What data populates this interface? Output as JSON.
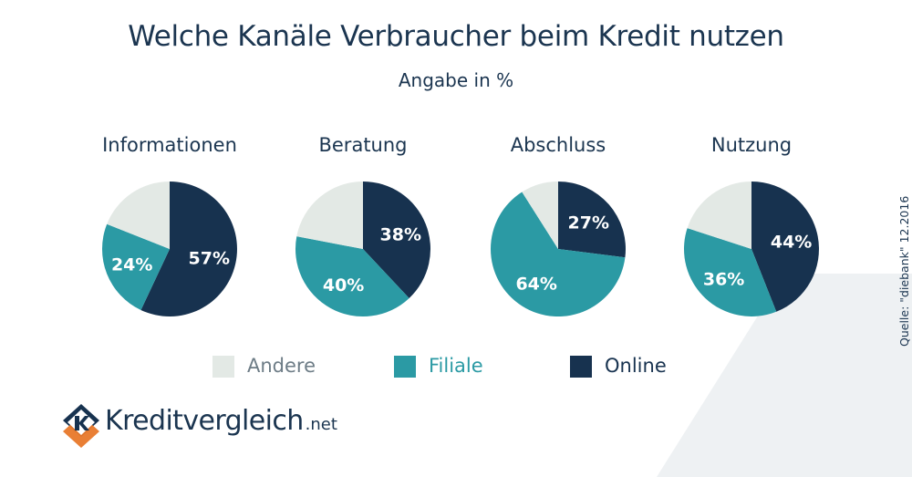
{
  "header": {
    "title": "Welche Kanäle Verbraucher beim Kredit nutzen",
    "subtitle": "Angabe in %"
  },
  "colors": {
    "andere": "#e3e9e5",
    "filiale": "#2b9aa4",
    "online": "#17324f",
    "text": "#1b3550",
    "andere_text": "#6d7c86",
    "watermark": "#eef1f3"
  },
  "chart_data": {
    "type": "pie",
    "title": "Welche Kanäle Verbraucher beim Kredit nutzen",
    "subtitle": "Angabe in %",
    "series_order": [
      "Online",
      "Filiale",
      "Andere"
    ],
    "charts": [
      {
        "title": "Informationen",
        "values": {
          "Online": 57,
          "Filiale": 24,
          "Andere": 19
        },
        "labels": {
          "Online": "57%",
          "Filiale": "24%"
        }
      },
      {
        "title": "Beratung",
        "values": {
          "Online": 38,
          "Filiale": 40,
          "Andere": 22
        },
        "labels": {
          "Online": "38%",
          "Filiale": "40%"
        }
      },
      {
        "title": "Abschluss",
        "values": {
          "Online": 27,
          "Filiale": 64,
          "Andere": 9
        },
        "labels": {
          "Online": "27%",
          "Filiale": "64%"
        }
      },
      {
        "title": "Nutzung",
        "values": {
          "Online": 44,
          "Filiale": 36,
          "Andere": 20
        },
        "labels": {
          "Online": "44%",
          "Filiale": "36%"
        }
      }
    ],
    "legend": [
      "Andere",
      "Filiale",
      "Online"
    ],
    "legend_position": "bottom-center"
  },
  "legend": {
    "andere": "Andere",
    "filiale": "Filiale",
    "online": "Online"
  },
  "source": "Quelle: \"diebank\" 12.2016",
  "logo": {
    "name": "Kreditvergleich",
    "tld": ".net"
  }
}
